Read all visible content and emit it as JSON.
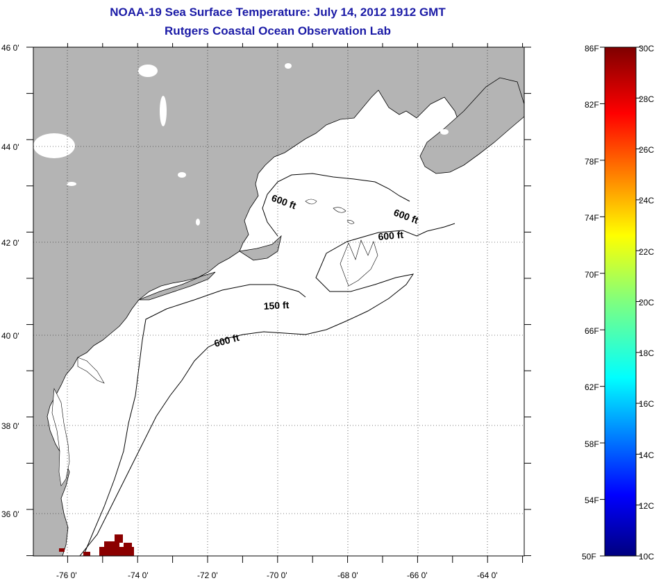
{
  "title": "NOAA-19 Sea Surface Temperature:  July 14, 2012 1912 GMT",
  "subtitle": "Rutgers Coastal Ocean Observation Lab",
  "map": {
    "lon_range": [
      -77,
      -63
    ],
    "lat_range": [
      35,
      46
    ],
    "lat_labels": [
      "46 0'",
      "44 0'",
      "42 0'",
      "40 0'",
      "38 0'",
      "36 0'"
    ],
    "lon_labels": [
      "-76 0'",
      "-74 0'",
      "-72 0'",
      "-70 0'",
      "-68 0'",
      "-66 0'",
      "-64 0'"
    ],
    "grid": "dotted",
    "land_color": "#b4b4b4",
    "ocean_color": "#ffffff",
    "contour_labels": [
      "600 ft",
      "600 ft",
      "600 ft",
      "150 ft",
      "600 ft"
    ]
  },
  "colorbar": {
    "fahrenheit_labels": [
      "86F",
      "82F",
      "78F",
      "74F",
      "70F",
      "66F",
      "62F",
      "58F",
      "54F",
      "50F"
    ],
    "celsius_labels": [
      "30C",
      "28C",
      "26C",
      "24C",
      "22C",
      "20C",
      "18C",
      "16C",
      "14C",
      "12C",
      "10C"
    ],
    "range_c": [
      10,
      30
    ],
    "colormap": "jet"
  }
}
